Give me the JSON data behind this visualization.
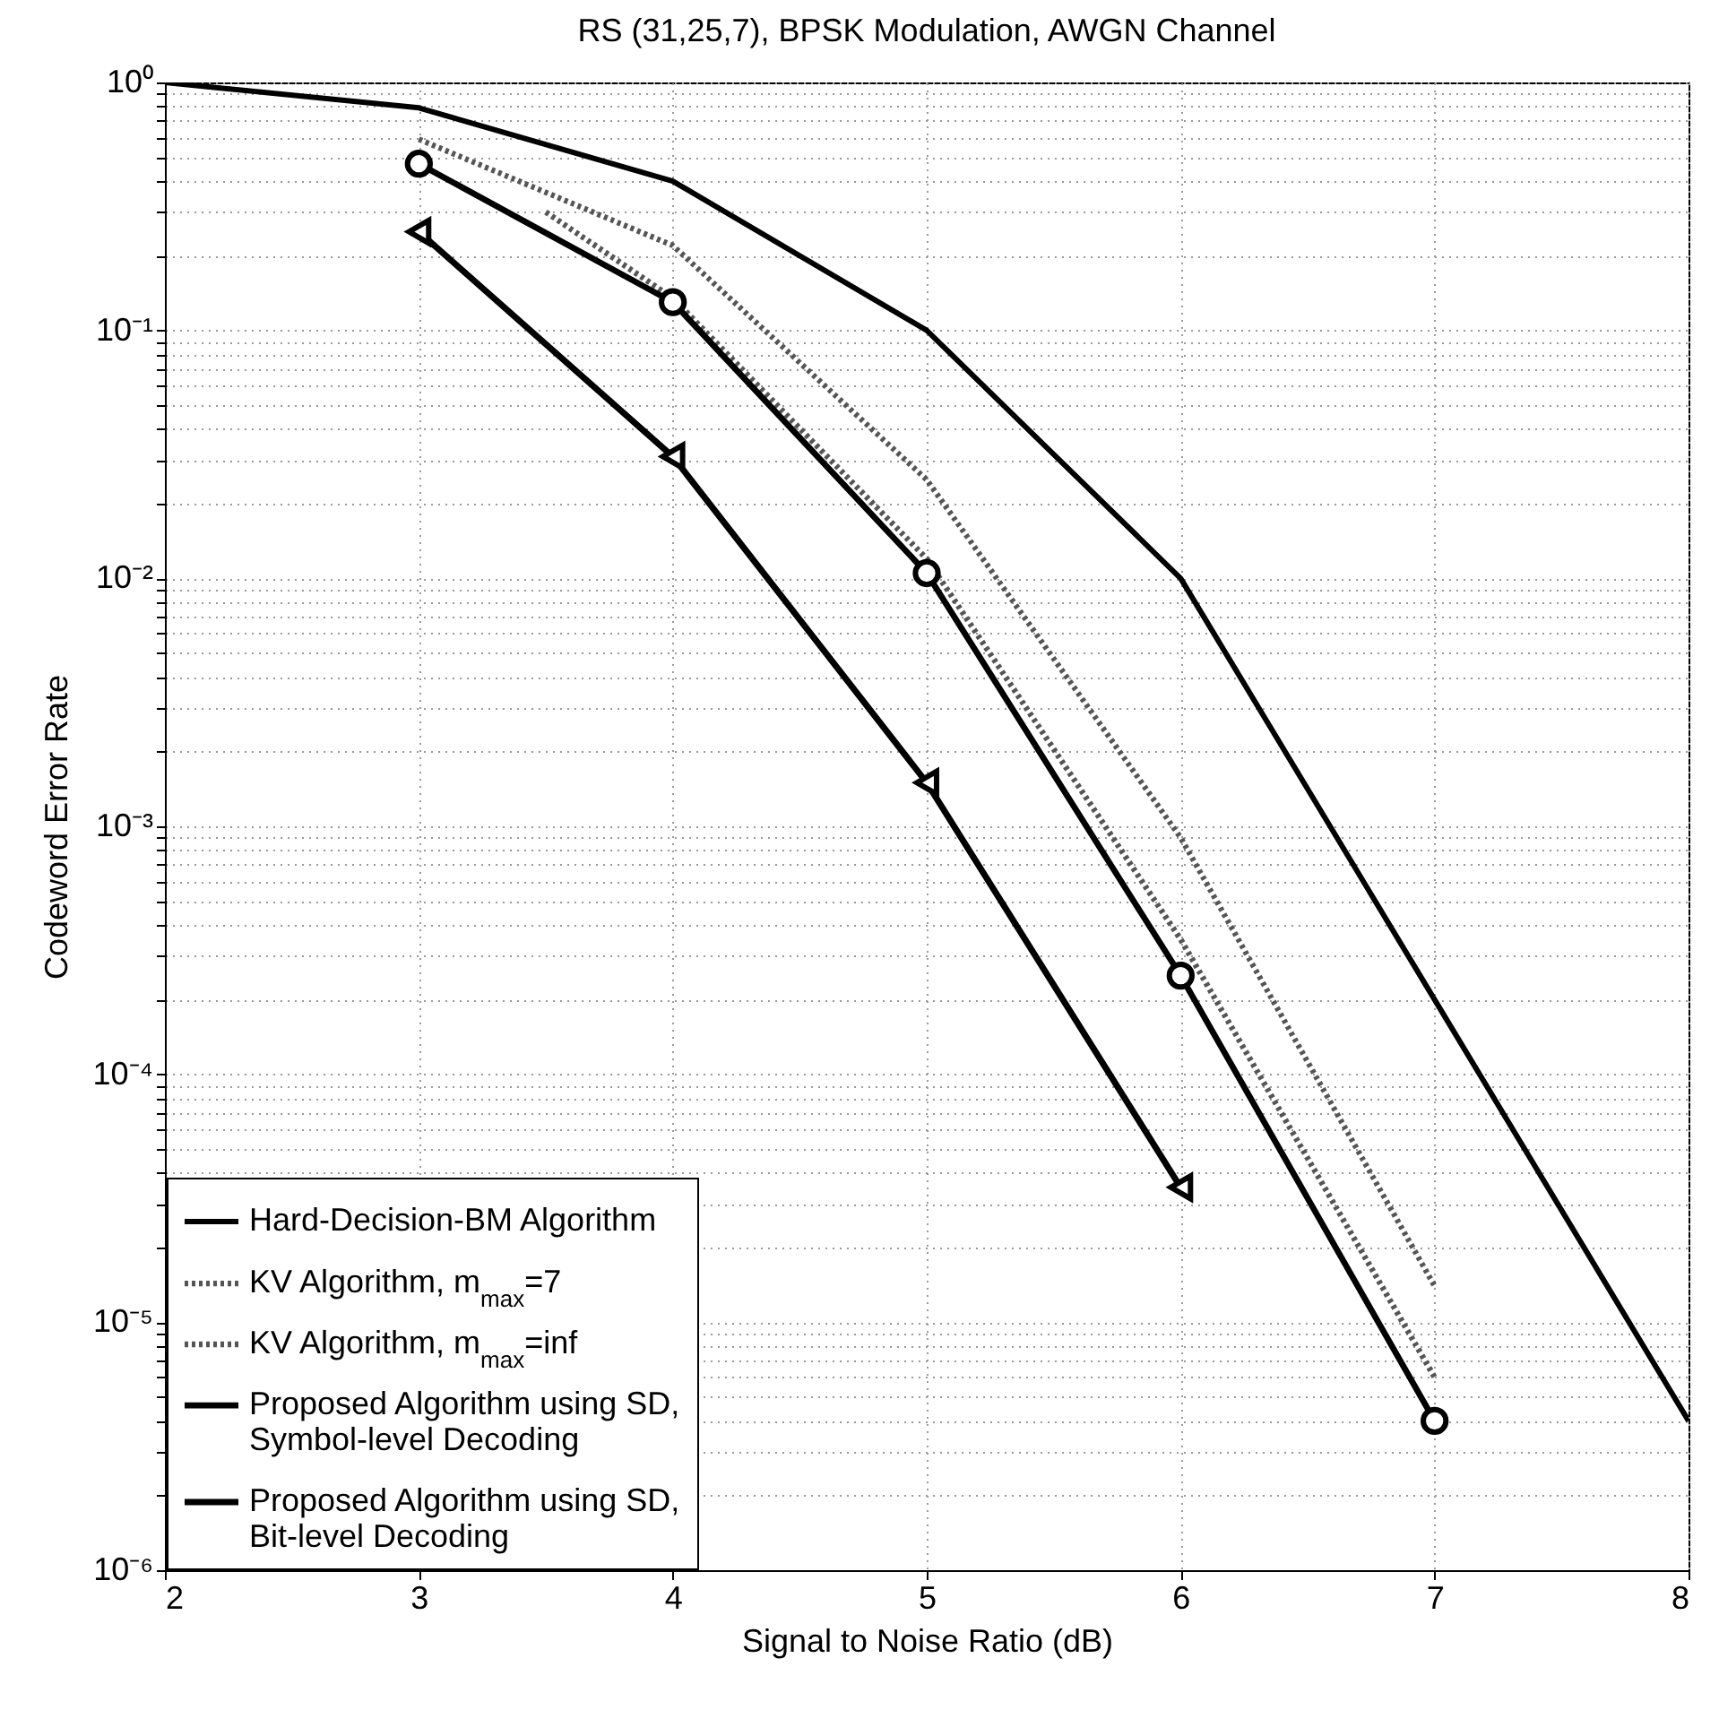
{
  "chart_data": {
    "type": "line",
    "title": "RS (31,25,7), BPSK Modulation, AWGN Channel",
    "xlabel": "Signal to Noise Ratio (dB)",
    "ylabel": "Codeword Error Rate",
    "log": "y",
    "grid": true,
    "legend": "bottom left",
    "xlim": [
      2,
      8
    ],
    "xticks": [
      2,
      3,
      4,
      5,
      6,
      7,
      8
    ],
    "ylim": [
      1e-06,
      1
    ],
    "yticks": [
      {
        "value": 1e-06,
        "label": "10⁻⁶"
      },
      {
        "value": 2e-06,
        "label": null
      },
      {
        "value": 3e-06,
        "label": null
      },
      {
        "value": 4e-06,
        "label": null
      },
      {
        "value": 5e-06,
        "label": null
      },
      {
        "value": 6e-06,
        "label": null
      },
      {
        "value": 7e-06,
        "label": null
      },
      {
        "value": 8e-06,
        "label": null
      },
      {
        "value": 9e-06,
        "label": null
      },
      {
        "value": 1e-05,
        "label": "10⁻⁵"
      },
      {
        "value": 2e-05,
        "label": null
      },
      {
        "value": 3e-05,
        "label": null
      },
      {
        "value": 4e-05,
        "label": null
      },
      {
        "value": 5e-05,
        "label": null
      },
      {
        "value": 6e-05,
        "label": null
      },
      {
        "value": 7e-05,
        "label": null
      },
      {
        "value": 8e-05,
        "label": null
      },
      {
        "value": 9e-05,
        "label": null
      },
      {
        "value": 0.0001,
        "label": "10⁻⁴"
      },
      {
        "value": 0.0002,
        "label": null
      },
      {
        "value": 0.0003,
        "label": null
      },
      {
        "value": 0.0004,
        "label": null
      },
      {
        "value": 0.0005,
        "label": null
      },
      {
        "value": 0.0006,
        "label": null
      },
      {
        "value": 0.0007,
        "label": null
      },
      {
        "value": 0.0008,
        "label": null
      },
      {
        "value": 0.0009,
        "label": null
      },
      {
        "value": 0.001,
        "label": "10⁻³"
      },
      {
        "value": 0.002,
        "label": null
      },
      {
        "value": 0.003,
        "label": null
      },
      {
        "value": 0.004,
        "label": null
      },
      {
        "value": 0.005,
        "label": null
      },
      {
        "value": 0.006,
        "label": null
      },
      {
        "value": 0.007,
        "label": null
      },
      {
        "value": 0.008,
        "label": null
      },
      {
        "value": 0.009,
        "label": null
      },
      {
        "value": 0.01,
        "label": "10⁻²"
      },
      {
        "value": 0.02,
        "label": null
      },
      {
        "value": 0.03,
        "label": null
      },
      {
        "value": 0.04,
        "label": null
      },
      {
        "value": 0.05,
        "label": null
      },
      {
        "value": 0.06,
        "label": null
      },
      {
        "value": 0.07,
        "label": null
      },
      {
        "value": 0.08,
        "label": null
      },
      {
        "value": 0.09,
        "label": null
      },
      {
        "value": 0.1,
        "label": "10⁻¹"
      },
      {
        "value": 0.2,
        "label": null
      },
      {
        "value": 0.3,
        "label": null
      },
      {
        "value": 0.4,
        "label": null
      },
      {
        "value": 0.5,
        "label": null
      },
      {
        "value": 0.6,
        "label": null
      },
      {
        "value": 0.7,
        "label": null
      },
      {
        "value": 0.8,
        "label": null
      },
      {
        "value": 0.9,
        "label": null
      },
      {
        "value": 1,
        "label": "10⁰"
      }
    ],
    "series": [
      {
        "name": "Hard-Decision-BM Algorithm",
        "color": "#000000",
        "line_style": "solid",
        "marker": "none",
        "x": [
          2,
          3,
          4,
          5,
          6,
          7,
          8
        ],
        "values": [
          1,
          0.79,
          0.4,
          0.1,
          0.01,
          0.0002,
          4e-06
        ]
      },
      {
        "name": "KV Algorithm, m$_{max}$=7",
        "color": "#555555",
        "line_style": "dotted",
        "marker": "none",
        "x": [
          3,
          4,
          5,
          6,
          7
        ],
        "values": [
          0.59,
          0.22,
          0.025,
          0.0009,
          1.4e-05
        ]
      },
      {
        "name": "KV Algorithm, m$_{max}$=inf",
        "color": "#555555",
        "line_style": "dotted",
        "marker": "none",
        "x": [
          3.5,
          4,
          5,
          6,
          7
        ],
        "values": [
          0.3,
          0.135,
          0.012,
          0.00035,
          6e-06
        ]
      },
      {
        "name": "Proposed Algorithm using SD,\nSymbol-level Decoding",
        "color": "#000000",
        "line_style": "solid",
        "marker": "circle",
        "x": [
          3,
          4,
          5,
          6,
          7
        ],
        "values": [
          0.47,
          0.13,
          0.0105,
          0.00025,
          4e-06
        ]
      },
      {
        "name": "Proposed Algorithm using SD,\nBit-level Decoding",
        "color": "#000000",
        "line_style": "solid",
        "marker": "triangle",
        "x": [
          3,
          4,
          5,
          6
        ],
        "values": [
          0.25,
          0.031,
          0.0015,
          3.5e-05
        ]
      }
    ]
  }
}
